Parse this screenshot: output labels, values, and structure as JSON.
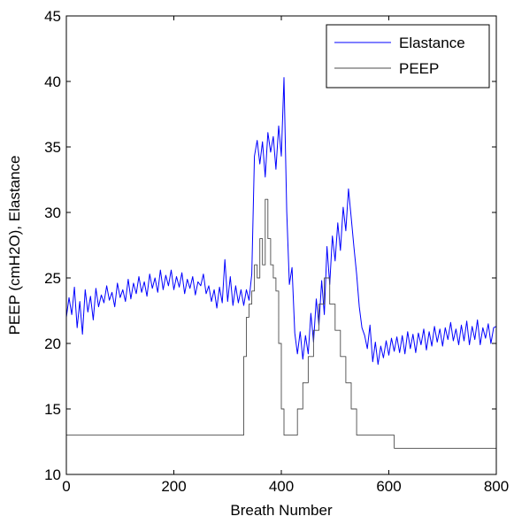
{
  "chart_data": {
    "type": "line",
    "title": "",
    "xlabel": "Breath Number",
    "ylabel": "PEEP (cmH2O), Elastance",
    "xlim": [
      0,
      800
    ],
    "ylim": [
      10,
      45
    ],
    "xticks": [
      0,
      200,
      400,
      600,
      800
    ],
    "yticks": [
      10,
      15,
      20,
      25,
      30,
      35,
      40,
      45
    ],
    "grid": false,
    "legend_position": "top-right",
    "series": [
      {
        "name": "Elastance",
        "color": "#0000ff",
        "x": [
          0,
          5,
          10,
          15,
          20,
          25,
          30,
          35,
          40,
          45,
          50,
          55,
          60,
          65,
          70,
          75,
          80,
          85,
          90,
          95,
          100,
          105,
          110,
          115,
          120,
          125,
          130,
          135,
          140,
          145,
          150,
          155,
          160,
          165,
          170,
          175,
          180,
          185,
          190,
          195,
          200,
          205,
          210,
          215,
          220,
          225,
          230,
          235,
          240,
          245,
          250,
          255,
          260,
          265,
          270,
          275,
          280,
          285,
          290,
          295,
          300,
          305,
          310,
          315,
          320,
          325,
          330,
          335,
          340,
          345,
          350,
          355,
          360,
          365,
          370,
          375,
          380,
          385,
          390,
          395,
          400,
          405,
          410,
          415,
          420,
          425,
          430,
          435,
          440,
          445,
          450,
          455,
          460,
          465,
          470,
          475,
          480,
          485,
          490,
          495,
          500,
          505,
          510,
          515,
          520,
          525,
          530,
          535,
          540,
          545,
          550,
          555,
          560,
          565,
          570,
          575,
          580,
          585,
          590,
          595,
          600,
          605,
          610,
          615,
          620,
          625,
          630,
          635,
          640,
          645,
          650,
          655,
          660,
          665,
          670,
          675,
          680,
          685,
          690,
          695,
          700,
          705,
          710,
          715,
          720,
          725,
          730,
          735,
          740,
          745,
          750,
          755,
          760,
          765,
          770,
          775,
          780,
          785,
          790,
          795,
          800
        ],
        "y": [
          22,
          23.5,
          22.2,
          24.3,
          21.2,
          23.2,
          20.7,
          24.1,
          22.4,
          23.6,
          21.8,
          24.2,
          22.8,
          23.7,
          23.1,
          24.4,
          23.3,
          23.9,
          22.8,
          24.6,
          23.5,
          24.1,
          23.2,
          24.9,
          23.4,
          24.6,
          23.8,
          25.1,
          23.9,
          24.7,
          23.6,
          25.3,
          24.2,
          25,
          23.9,
          25.6,
          24.1,
          25.2,
          24.4,
          25.6,
          24.1,
          25.1,
          24.3,
          25.4,
          23.8,
          24.9,
          24.2,
          25.1,
          23.7,
          24.7,
          24.4,
          25.3,
          23.8,
          24.4,
          23.2,
          24.1,
          22.7,
          24.3,
          23.1,
          26.4,
          23.2,
          25.1,
          22.9,
          24.4,
          23.1,
          24.1,
          22.9,
          24.1,
          23.3,
          25.3,
          34.3,
          35.5,
          33.7,
          35.4,
          32.7,
          36.1,
          34.6,
          35.8,
          33.3,
          36.6,
          34.3,
          40.3,
          30.1,
          24.5,
          25.8,
          20.8,
          19.2,
          20.9,
          18.8,
          20.6,
          19.2,
          22.3,
          20.1,
          23.4,
          21.4,
          24.8,
          22.2,
          27.4,
          24.5,
          28.2,
          26.3,
          29.2,
          27.1,
          30.4,
          28.6,
          31.8,
          29.6,
          27.4,
          25.3,
          22.8,
          21.2,
          20.6,
          19.6,
          21.4,
          18.6,
          20.1,
          18.4,
          19.8,
          18.9,
          20.2,
          19.1,
          20.4,
          19.4,
          20.5,
          19.3,
          20.6,
          19.2,
          20.9,
          19.6,
          20.7,
          19.3,
          20.8,
          19.9,
          21.1,
          19.5,
          20.9,
          19.8,
          21.3,
          20.1,
          21.1,
          19.8,
          21.2,
          20.3,
          21.6,
          20.2,
          21.1,
          19.9,
          21.4,
          20.2,
          21.7,
          19.9,
          21.3,
          20.3,
          21.8,
          19.9,
          21.2,
          20.4,
          21.5,
          20,
          21.2,
          21.3
        ]
      },
      {
        "name": "PEEP",
        "color": "#4d4d4d",
        "x": [
          0,
          330,
          330,
          335,
          335,
          340,
          340,
          345,
          345,
          350,
          350,
          355,
          355,
          360,
          360,
          365,
          365,
          370,
          370,
          375,
          375,
          380,
          380,
          385,
          385,
          390,
          390,
          395,
          395,
          400,
          400,
          405,
          405,
          430,
          430,
          440,
          440,
          450,
          450,
          460,
          460,
          470,
          470,
          480,
          480,
          490,
          490,
          500,
          500,
          510,
          510,
          520,
          520,
          530,
          530,
          540,
          540,
          550,
          550,
          560,
          560,
          610,
          610,
          800
        ],
        "y": [
          13,
          13,
          19,
          19,
          22,
          22,
          23,
          23,
          24,
          24,
          26,
          26,
          25,
          25,
          28,
          28,
          26,
          26,
          31,
          31,
          28,
          28,
          26,
          26,
          25,
          25,
          24,
          24,
          20,
          20,
          15,
          15,
          13,
          13,
          15,
          15,
          17,
          17,
          19,
          19,
          21,
          21,
          23,
          23,
          25,
          25,
          23,
          23,
          21,
          21,
          19,
          19,
          17,
          17,
          15,
          15,
          13,
          13,
          13,
          13,
          13,
          13,
          12,
          12
        ]
      }
    ]
  }
}
